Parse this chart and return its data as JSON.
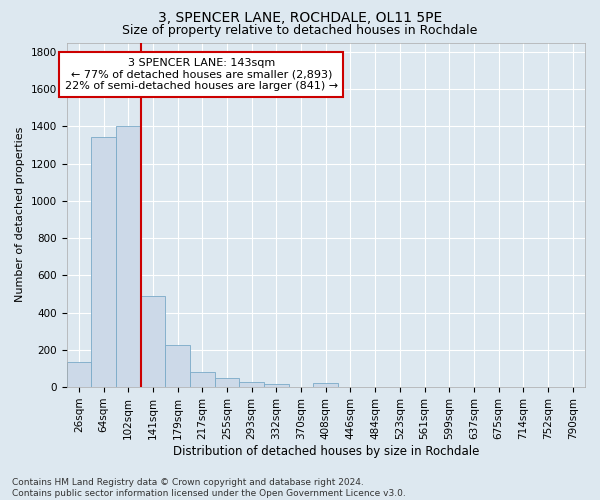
{
  "title1": "3, SPENCER LANE, ROCHDALE, OL11 5PE",
  "title2": "Size of property relative to detached houses in Rochdale",
  "xlabel": "Distribution of detached houses by size in Rochdale",
  "ylabel": "Number of detached properties",
  "footnote": "Contains HM Land Registry data © Crown copyright and database right 2024.\nContains public sector information licensed under the Open Government Licence v3.0.",
  "bar_labels": [
    "26sqm",
    "64sqm",
    "102sqm",
    "141sqm",
    "179sqm",
    "217sqm",
    "255sqm",
    "293sqm",
    "332sqm",
    "370sqm",
    "408sqm",
    "446sqm",
    "484sqm",
    "523sqm",
    "561sqm",
    "599sqm",
    "637sqm",
    "675sqm",
    "714sqm",
    "752sqm",
    "790sqm"
  ],
  "bar_values": [
    135,
    1340,
    1400,
    490,
    225,
    80,
    48,
    28,
    15,
    0,
    20,
    0,
    0,
    0,
    0,
    0,
    0,
    0,
    0,
    0,
    0
  ],
  "bar_color": "#ccd9e8",
  "bar_edge_color": "#7aaac8",
  "vline_x": 3.0,
  "vline_color": "#cc0000",
  "ylim": [
    0,
    1850
  ],
  "yticks": [
    0,
    200,
    400,
    600,
    800,
    1000,
    1200,
    1400,
    1600,
    1800
  ],
  "annotation_text": "3 SPENCER LANE: 143sqm\n← 77% of detached houses are smaller (2,893)\n22% of semi-detached houses are larger (841) →",
  "annotation_box_facecolor": "#ffffff",
  "annotation_box_edgecolor": "#cc0000",
  "background_color": "#dde8f0",
  "plot_bg_color": "#dde8f0",
  "grid_color": "#ffffff",
  "title1_fontsize": 10,
  "title2_fontsize": 9,
  "xlabel_fontsize": 8.5,
  "ylabel_fontsize": 8,
  "tick_fontsize": 7.5,
  "annotation_fontsize": 8,
  "footnote_fontsize": 6.5
}
